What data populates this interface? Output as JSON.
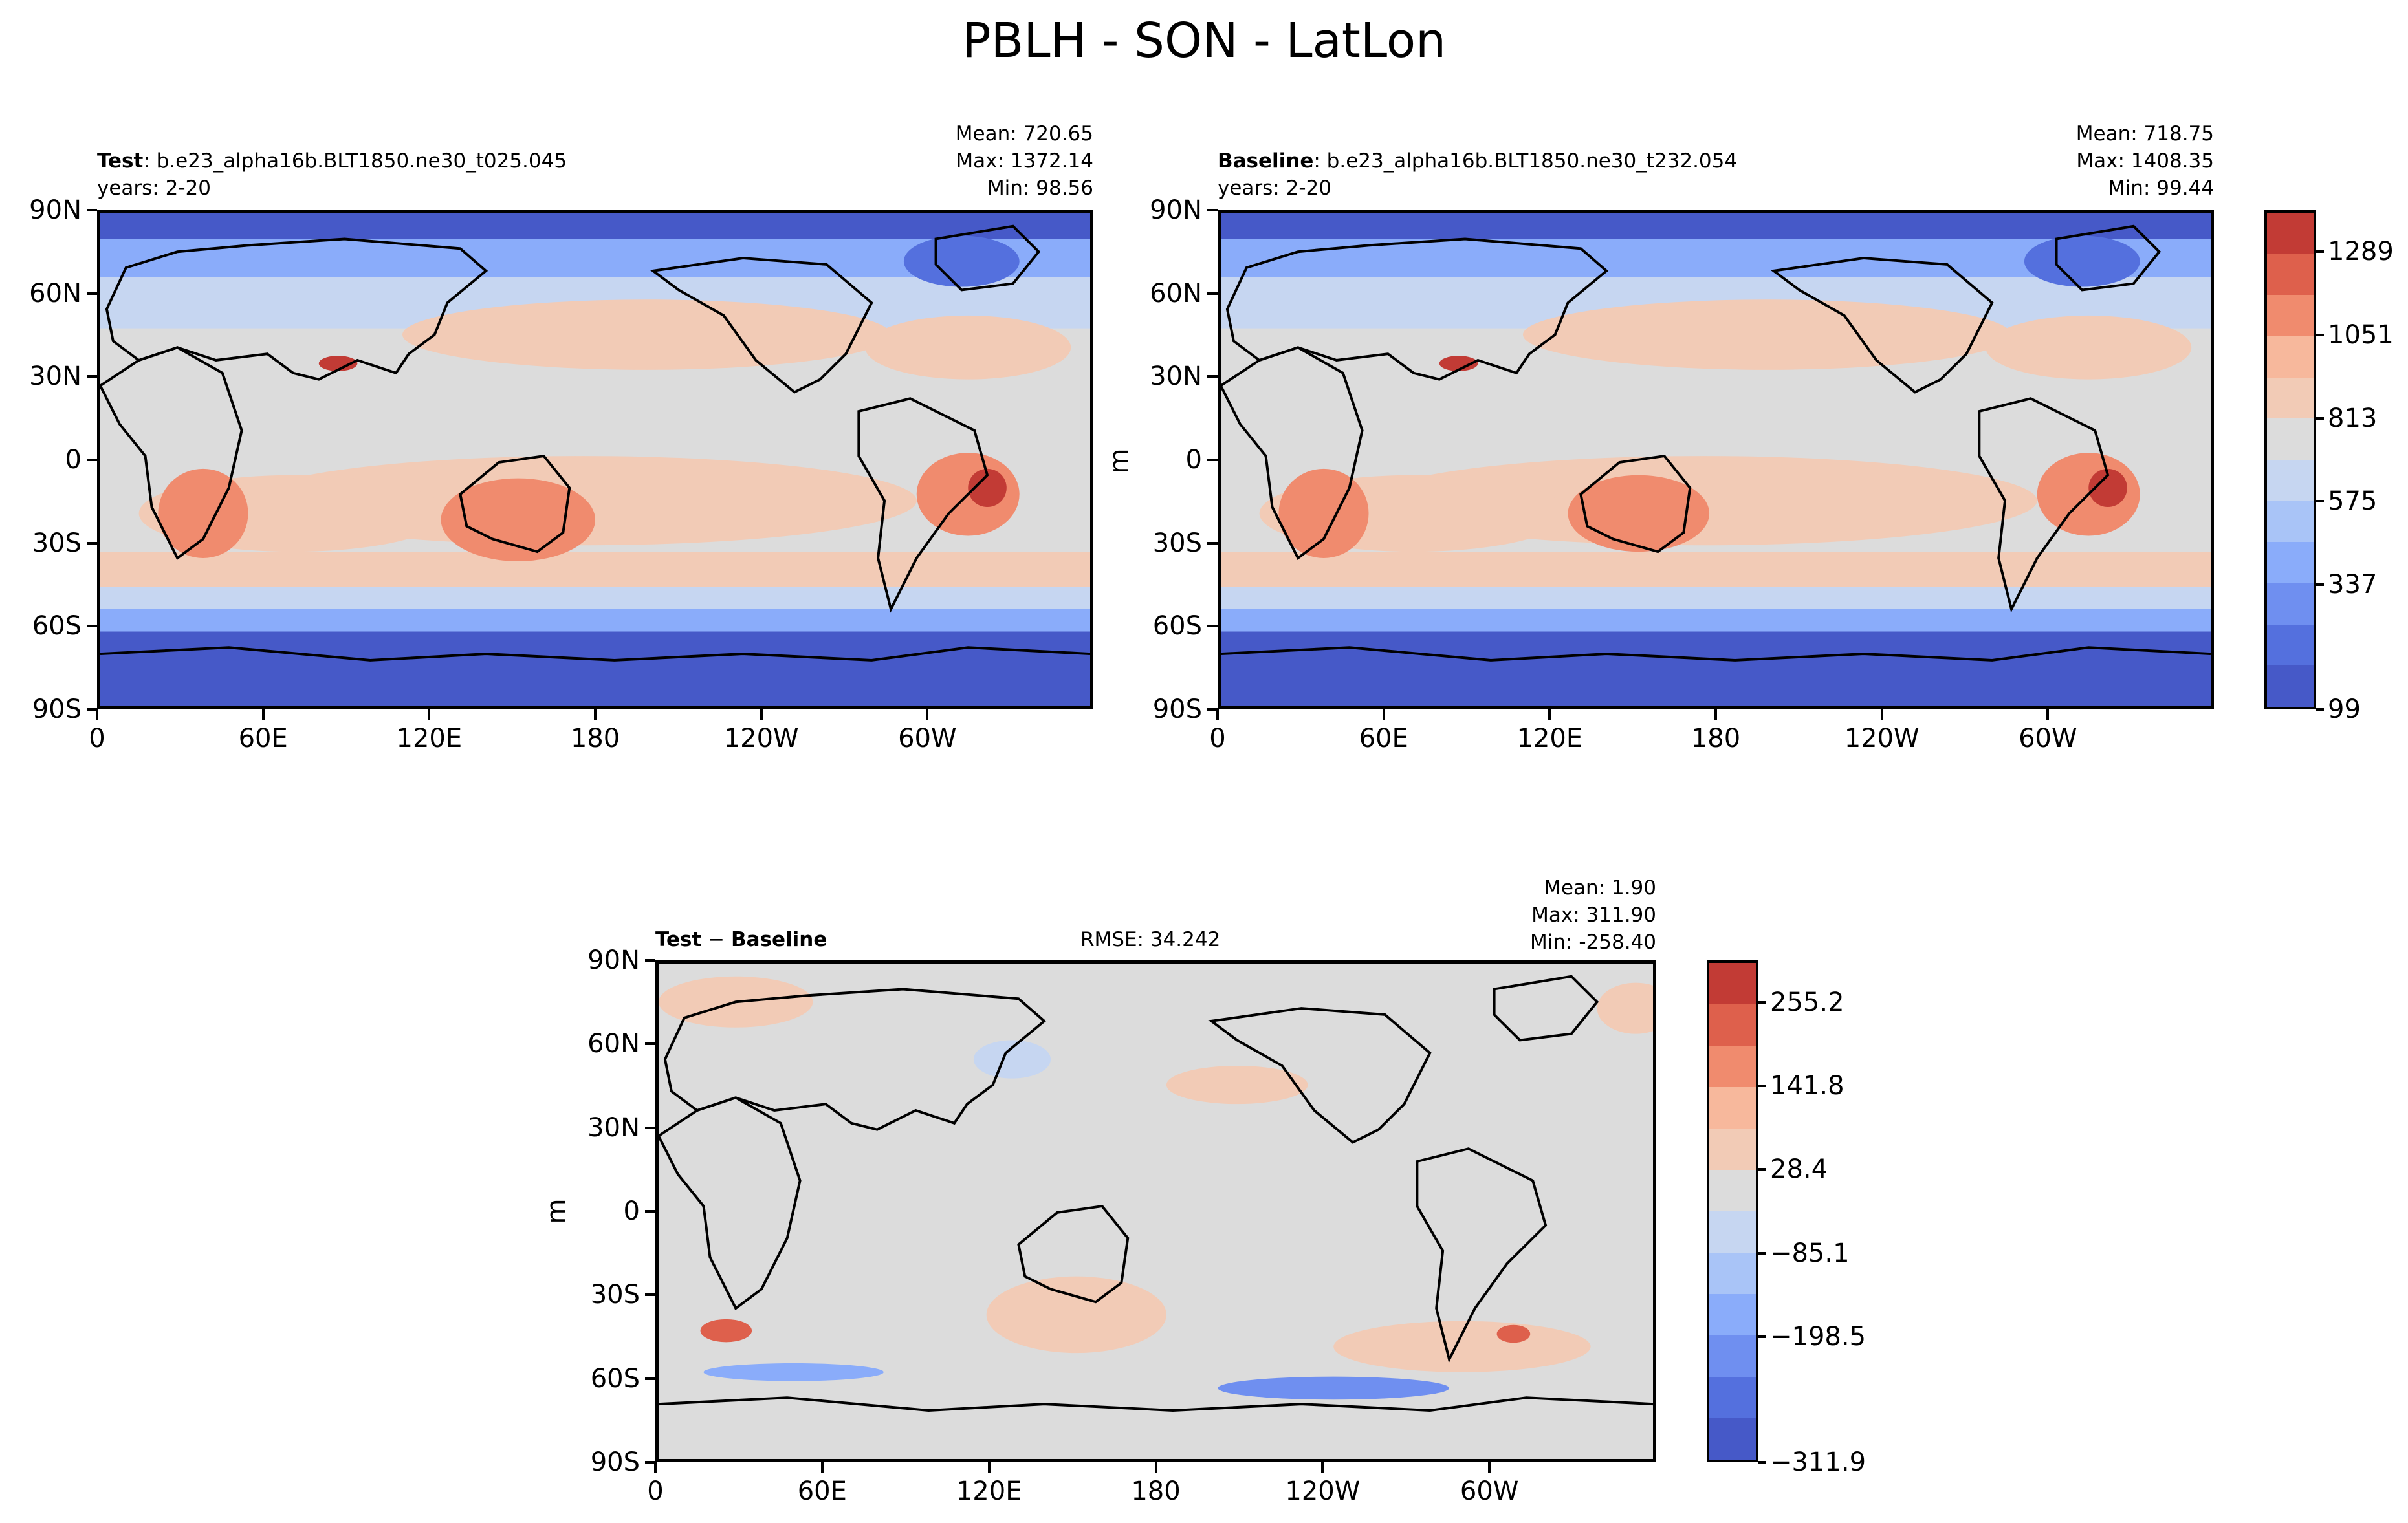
{
  "figure": {
    "title": "PBLH - SON - LatLon"
  },
  "palette": [
    "#c23b35",
    "#de604c",
    "#f08b6e",
    "#f7b89c",
    "#f2cbb6",
    "#dcdcdc",
    "#c6d6f1",
    "#a9c4f7",
    "#8aacfa",
    "#6f8ff0",
    "#5470de",
    "#4659c8"
  ],
  "panels": {
    "test": {
      "label_bold": "Test",
      "case": ": b.e23_alpha16b.BLT1850.ne30_t025.045",
      "years": "years: 2-20",
      "mean": "Mean: 720.65",
      "max": "Max: 1372.14",
      "min": "Min: 98.56"
    },
    "baseline": {
      "label_bold": "Baseline",
      "case": ": b.e23_alpha16b.BLT1850.ne30_t232.054",
      "years": "years: 2-20",
      "mean": "Mean: 718.75",
      "max": "Max: 1408.35",
      "min": "Min: 99.44",
      "ylabel": "m"
    },
    "diff": {
      "label_a": "Test",
      "label_sep": " − ",
      "label_b": "Baseline",
      "rmse": "RMSE: 34.242",
      "mean": "Mean:  1.90",
      "max": "Max: 311.90",
      "min": "Min: -258.40",
      "ylabel": "m"
    }
  },
  "axes": {
    "lat_ticks": [
      "90N",
      "60N",
      "30N",
      "0",
      "30S",
      "60S",
      "90S"
    ],
    "lon_ticks": [
      "0",
      "60E",
      "120E",
      "180",
      "120W",
      "60W"
    ]
  },
  "chart_data": [
    {
      "type": "heatmap",
      "title": "Test",
      "variable": "PBLH",
      "units": "m",
      "xlim": [
        0,
        360
      ],
      "ylim": [
        -90,
        90
      ],
      "stats": {
        "mean": 720.65,
        "max": 1372.14,
        "min": 98.56
      }
    },
    {
      "type": "heatmap",
      "title": "Baseline",
      "variable": "PBLH",
      "units": "m",
      "xlim": [
        0,
        360
      ],
      "ylim": [
        -90,
        90
      ],
      "stats": {
        "mean": 718.75,
        "max": 1408.35,
        "min": 99.44
      },
      "colorbar": {
        "ticks": [
          "1289",
          "1051",
          "813",
          "575",
          "337",
          "99"
        ]
      }
    },
    {
      "type": "heatmap",
      "title": "Test − Baseline",
      "variable": "PBLH difference",
      "units": "m",
      "xlim": [
        0,
        360
      ],
      "ylim": [
        -90,
        90
      ],
      "stats": {
        "mean": 1.9,
        "max": 311.9,
        "min": -258.4,
        "rmse": 34.242
      },
      "colorbar": {
        "ticks": [
          "255.2",
          "141.8",
          "28.4",
          "−85.1",
          "−198.5",
          "−311.9"
        ]
      }
    }
  ]
}
